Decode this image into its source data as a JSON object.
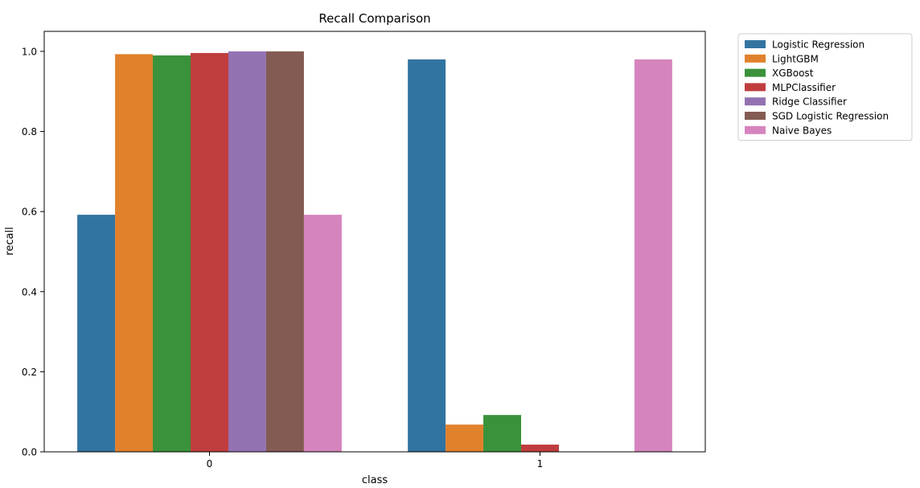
{
  "chart_data": {
    "type": "bar",
    "title": "Recall Comparison",
    "xlabel": "class",
    "ylabel": "recall",
    "categories": [
      "0",
      "1"
    ],
    "ylim": [
      0,
      1.05
    ],
    "yticks": [
      0.0,
      0.2,
      0.4,
      0.6,
      0.8,
      1.0
    ],
    "ytick_labels": [
      "0.0",
      "0.2",
      "0.4",
      "0.6",
      "0.8",
      "1.0"
    ],
    "grid": false,
    "legend_position": "outside-top-right",
    "series": [
      {
        "name": "Logistic Regression",
        "color": "#3274a1",
        "values": [
          0.592,
          0.98
        ]
      },
      {
        "name": "LightGBM",
        "color": "#e1812c",
        "values": [
          0.993,
          0.068
        ]
      },
      {
        "name": "XGBoost",
        "color": "#3a923a",
        "values": [
          0.99,
          0.092
        ]
      },
      {
        "name": "MLPClassifier",
        "color": "#c03d3e",
        "values": [
          0.996,
          0.018
        ]
      },
      {
        "name": "Ridge Classifier",
        "color": "#9372b2",
        "values": [
          1.0,
          0.0
        ]
      },
      {
        "name": "SGD Logistic Regression",
        "color": "#845b53",
        "values": [
          1.0,
          0.0
        ]
      },
      {
        "name": "Naive Bayes",
        "color": "#d684bd",
        "values": [
          0.592,
          0.98
        ]
      }
    ]
  }
}
